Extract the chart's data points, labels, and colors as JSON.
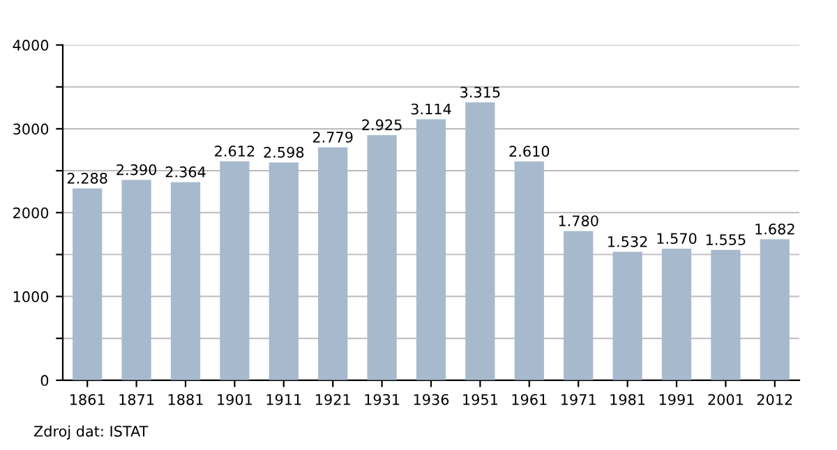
{
  "chart_data": {
    "type": "bar",
    "categories": [
      "1861",
      "1871",
      "1881",
      "1901",
      "1911",
      "1921",
      "1931",
      "1936",
      "1951",
      "1961",
      "1971",
      "1981",
      "1991",
      "2001",
      "2012"
    ],
    "values": [
      2288,
      2390,
      2364,
      2612,
      2598,
      2779,
      2925,
      3114,
      3315,
      2610,
      1780,
      1532,
      1570,
      1555,
      1682
    ],
    "value_labels": [
      "2.288",
      "2.390",
      "2.364",
      "2.612",
      "2.598",
      "2.779",
      "2.925",
      "3.114",
      "3.315",
      "2.610",
      "1.780",
      "1.532",
      "1.570",
      "1.555",
      "1.682"
    ],
    "color": "#a7b9cd",
    "ylim": [
      0,
      4000
    ],
    "yticks": [
      0,
      {
        "value": 500,
        "label": null
      },
      1000,
      {
        "value": 1500,
        "label": null
      },
      2000,
      {
        "value": 2500,
        "label": null
      },
      3000,
      {
        "value": 3500,
        "label": null
      },
      4000
    ],
    "grid": "y",
    "legend": false,
    "annotations": [
      "Zdroj dat: ISTAT"
    ]
  }
}
